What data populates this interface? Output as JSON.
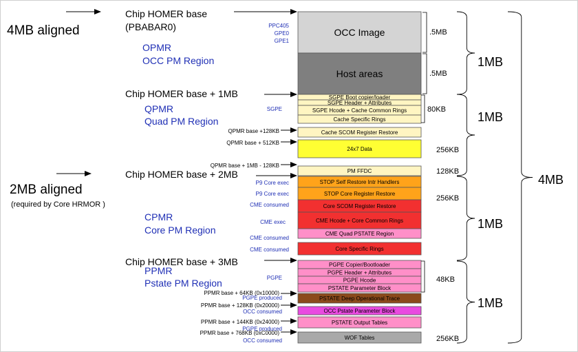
{
  "left_labels": {
    "aligned_4mb": "4MB aligned",
    "aligned_2mb": "2MB aligned",
    "aligned_2mb_note": "(required by Core HRMOR )"
  },
  "markers": [
    {
      "id": "homer-base",
      "text": "Chip HOMER base"
    },
    {
      "id": "pbabar",
      "text": "(PBABAR0)"
    },
    {
      "id": "homer-1mb",
      "text": "Chip HOMER base + 1MB"
    },
    {
      "id": "homer-2mb",
      "text": "Chip HOMER base + 2MB"
    },
    {
      "id": "homer-3mb",
      "text": "Chip HOMER base + 3MB"
    }
  ],
  "regions": [
    {
      "id": "opmr-1",
      "text": "OPMR"
    },
    {
      "id": "opmr-2",
      "text": "OCC PM Region"
    },
    {
      "id": "qpmr-1",
      "text": "QPMR"
    },
    {
      "id": "qpmr-2",
      "text": "Quad PM Region"
    },
    {
      "id": "cpmr-1",
      "text": "CPMR"
    },
    {
      "id": "cpmr-2",
      "text": "Core PM Region"
    },
    {
      "id": "ppmr-1",
      "text": "PPMR"
    },
    {
      "id": "ppmr-2",
      "text": "Pstate PM Region"
    }
  ],
  "engine_notes": [
    {
      "id": "ppc405",
      "text": "PPC405"
    },
    {
      "id": "gpe0",
      "text": "GPE0"
    },
    {
      "id": "gpe1",
      "text": "GPE1"
    },
    {
      "id": "sgpe",
      "text": "SGPE"
    },
    {
      "id": "p9-core-exec-1",
      "text": "P9 Core exec"
    },
    {
      "id": "p9-core-exec-2",
      "text": "P9 Core exec"
    },
    {
      "id": "cme-consumed-1",
      "text": "CME consumed"
    },
    {
      "id": "cme-exec",
      "text": "CME exec"
    },
    {
      "id": "cme-consumed-2",
      "text": "CME consumed"
    },
    {
      "id": "cme-consumed-3",
      "text": "CME consumed"
    },
    {
      "id": "pgpe",
      "text": "PGPE"
    },
    {
      "id": "pgpe-produced-1",
      "text": "PGPE produced"
    },
    {
      "id": "occ-consumed-1",
      "text": "OCC consumed"
    },
    {
      "id": "pgpe-produced-2",
      "text": "PGPE produced"
    },
    {
      "id": "occ-consumed-2",
      "text": "OCC consumed"
    }
  ],
  "offsets": [
    {
      "id": "qpmr-128",
      "text": "QPMR base +128KB"
    },
    {
      "id": "qpmr-512",
      "text": "QPMR base + 512KB"
    },
    {
      "id": "qpmr-1mb-128",
      "text": "QPMR base + 1MB - 128KB"
    },
    {
      "id": "ppmr-64",
      "text": "PPMR base +  64KB (0x10000)"
    },
    {
      "id": "ppmr-128",
      "text": "PPMR base +  128KB (0x20000)"
    },
    {
      "id": "ppmr-144",
      "text": "PPMR base +  144KB (0x24000)"
    },
    {
      "id": "ppmr-768",
      "text": "PPMR base +  768KB (0xC0000)"
    }
  ],
  "memory_blocks": [
    {
      "id": "occ-image",
      "label": "OCC Image",
      "color": "#d4d4d4"
    },
    {
      "id": "host-areas",
      "label": "Host areas",
      "color": "#7f7f7f"
    },
    {
      "id": "sgpe-boot",
      "label": "SGPE Boot copier/loader",
      "color": "#fff5c2"
    },
    {
      "id": "sgpe-header",
      "label": "SGPE Header + Attributes",
      "color": "#fff5c2"
    },
    {
      "id": "sgpe-hcode",
      "label": "SGPE Hcode + Cache Common Rings",
      "color": "#fff5c2"
    },
    {
      "id": "cache-specific",
      "label": "Cache Specific Rings",
      "color": "#fff5c2"
    },
    {
      "id": "cache-scom",
      "label": "Cache SCOM Register Restore",
      "color": "#fff5c2"
    },
    {
      "id": "data-24x7",
      "label": "24x7 Data",
      "color": "#ffff33"
    },
    {
      "id": "pm-ffdc",
      "label": "PM FFDC",
      "color": "#fff5c2"
    },
    {
      "id": "stop-self",
      "label": "STOP Self Restore Intr Handlers",
      "color": "#ffa31a"
    },
    {
      "id": "stop-core",
      "label": "STOP Core Register Restore",
      "color": "#ffa31a"
    },
    {
      "id": "core-scom",
      "label": "Core SCOM Register Restore",
      "color": "#f23030"
    },
    {
      "id": "cme-hcode",
      "label": "CME Hcode + Core Common Rings",
      "color": "#f23030"
    },
    {
      "id": "cme-quad",
      "label": "CME Quad PSTATE Region",
      "color": "#ff8fc8"
    },
    {
      "id": "core-specific",
      "label": "Core Specific Rings",
      "color": "#f23030"
    },
    {
      "id": "pgpe-copier",
      "label": "PGPE Copier/Bootloader",
      "color": "#ff8fc8"
    },
    {
      "id": "pgpe-header",
      "label": "PGPE Header + Attributes",
      "color": "#ff8fc8"
    },
    {
      "id": "pgpe-hcode",
      "label": "PGPE Hcode",
      "color": "#ff8fc8"
    },
    {
      "id": "pstate-param",
      "label": "PSTATE Parameter Block",
      "color": "#ff8fc8"
    },
    {
      "id": "pstate-deep",
      "label": "PSTATE Deep Operational Trace",
      "color": "#8b4a1b"
    },
    {
      "id": "occ-pstate",
      "label": "OCC Pstate Parameter Block",
      "color": "#e94ae0"
    },
    {
      "id": "pstate-output",
      "label": "PSTATE Output Tables",
      "color": "#ff8fc8"
    },
    {
      "id": "wof-tables",
      "label": "WOF Tables",
      "color": "#a9a9a9"
    }
  ],
  "sizes": [
    {
      "id": "size-occ",
      "text": ".5MB"
    },
    {
      "id": "size-host",
      "text": ".5MB"
    },
    {
      "id": "size-80kb",
      "text": "80KB"
    },
    {
      "id": "size-256kb-a",
      "text": "256KB"
    },
    {
      "id": "size-128kb",
      "text": "128KB"
    },
    {
      "id": "size-256kb-b",
      "text": "256KB"
    },
    {
      "id": "size-48kb",
      "text": "48KB"
    },
    {
      "id": "size-256kb-c",
      "text": "256KB"
    }
  ],
  "group_sizes": [
    {
      "id": "group-1mb-a",
      "text": "1MB"
    },
    {
      "id": "group-1mb-b",
      "text": "1MB"
    },
    {
      "id": "group-1mb-c",
      "text": "1MB"
    },
    {
      "id": "group-1mb-d",
      "text": "1MB"
    },
    {
      "id": "group-4mb",
      "text": "4MB"
    }
  ]
}
